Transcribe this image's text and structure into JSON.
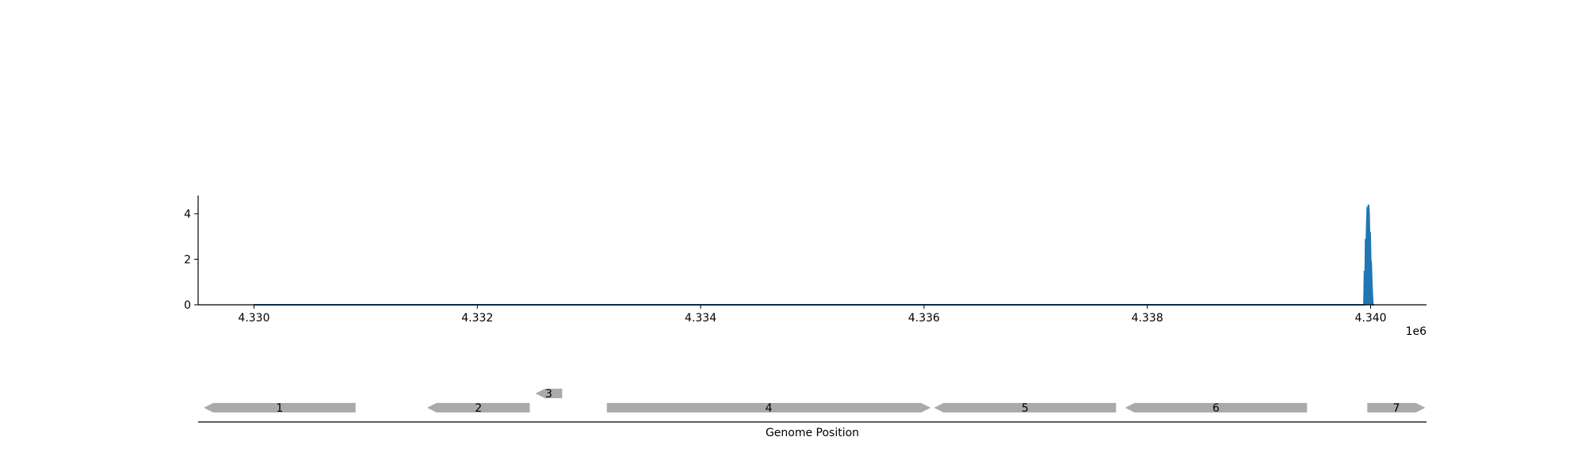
{
  "chart_data": [
    {
      "type": "area",
      "title": "",
      "xlabel": "",
      "ylabel": "",
      "xlim": [
        4329500,
        4340500
      ],
      "ylim": [
        0,
        4.8
      ],
      "x_ticks": [
        4330000,
        4332000,
        4334000,
        4336000,
        4338000,
        4340000
      ],
      "x_tick_labels": [
        "4.330",
        "4.332",
        "4.334",
        "4.336",
        "4.338",
        "4.340"
      ],
      "x_offset_label": "1e6",
      "y_ticks": [
        0,
        2,
        4
      ],
      "y_tick_labels": [
        "0",
        "2",
        "4"
      ],
      "grid": false,
      "color": "#1f77b4",
      "series": [
        {
          "x": [
            4330000,
            4339940,
            4339945,
            4339950,
            4339955,
            4339960,
            4339965,
            4339970,
            4339975,
            4339980,
            4339985,
            4339990,
            4339995,
            4340000,
            4340005,
            4340010,
            4340015,
            4340020,
            4340030
          ],
          "y": [
            0,
            0,
            1.5,
            0.6,
            2.9,
            2.4,
            3.5,
            4.3,
            4.0,
            4.4,
            4.1,
            3.0,
            3.2,
            2.0,
            1.8,
            1.0,
            0.4,
            0,
            0
          ]
        }
      ]
    },
    {
      "type": "gene_track",
      "xlabel": "Genome Position",
      "xlim": [
        4329500,
        4340500
      ],
      "color": "#aaaaaa",
      "features": [
        {
          "label": "1",
          "start": 4329550,
          "end": 4330910,
          "strand": "-",
          "row": 0
        },
        {
          "label": "2",
          "start": 4331550,
          "end": 4332470,
          "strand": "-",
          "row": 0
        },
        {
          "label": "3",
          "start": 4332520,
          "end": 4332760,
          "strand": "-",
          "row": 1
        },
        {
          "label": "4",
          "start": 4333160,
          "end": 4336060,
          "strand": "+",
          "row": 0
        },
        {
          "label": "5",
          "start": 4336090,
          "end": 4337720,
          "strand": "-",
          "row": 0
        },
        {
          "label": "6",
          "start": 4337800,
          "end": 4339430,
          "strand": "-",
          "row": 0
        },
        {
          "label": "7",
          "start": 4339970,
          "end": 4340490,
          "strand": "+",
          "row": 0
        }
      ]
    }
  ]
}
